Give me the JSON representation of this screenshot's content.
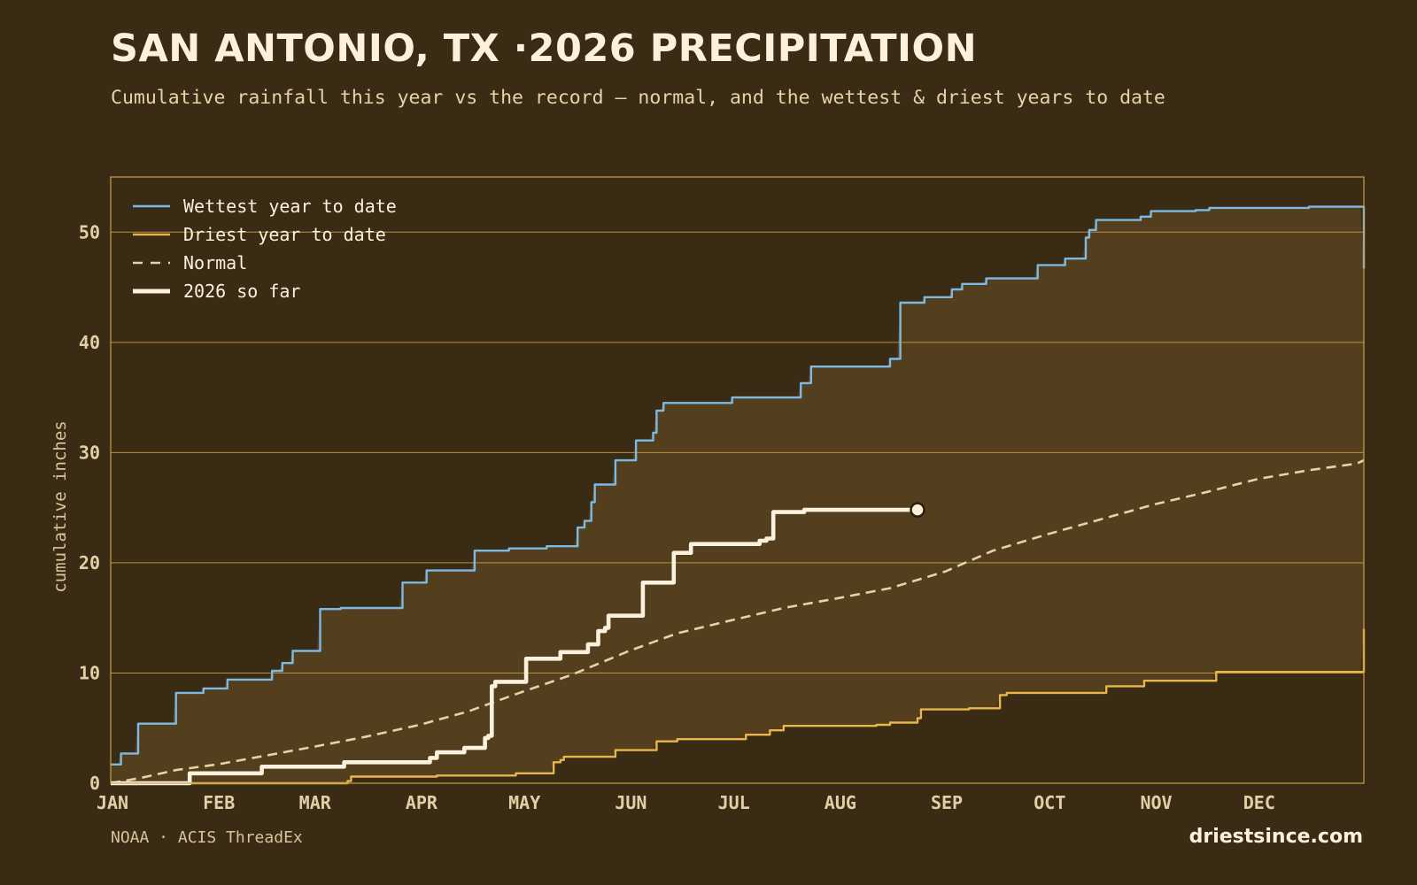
{
  "header": {
    "title": "SAN ANTONIO, TX ·2026 PRECIPITATION",
    "subtitle": "Cumulative rainfall this year vs the record — normal, and the wettest & driest years to date"
  },
  "footer": {
    "source": "NOAA · ACIS ThreadEx",
    "brand": "driestsince.com"
  },
  "colors": {
    "background": "#3a2b14",
    "band_fill": "#533f1e",
    "frame": "#c9a04a",
    "grid": "#b8913f",
    "wettest": "#7db9e2",
    "driest": "#e8b64a",
    "normal": "#e6d3a8",
    "current": "#fbf1dc"
  },
  "chart_data": {
    "type": "line",
    "ylabel": "cumulative inches",
    "ylim": [
      0,
      55
    ],
    "yticks": [
      0,
      10,
      20,
      30,
      40,
      50
    ],
    "xlim": [
      1,
      366
    ],
    "month_ticks": [
      {
        "label": "JAN",
        "day": 1
      },
      {
        "label": "FEB",
        "day": 32
      },
      {
        "label": "MAR",
        "day": 60
      },
      {
        "label": "APR",
        "day": 91
      },
      {
        "label": "MAY",
        "day": 121
      },
      {
        "label": "JUN",
        "day": 152
      },
      {
        "label": "JUL",
        "day": 182
      },
      {
        "label": "AUG",
        "day": 213
      },
      {
        "label": "SEP",
        "day": 244
      },
      {
        "label": "OCT",
        "day": 274
      },
      {
        "label": "NOV",
        "day": 305
      },
      {
        "label": "DEC",
        "day": 335
      }
    ],
    "grid": true,
    "legend_position": "top-left",
    "series": [
      {
        "name": "Wettest year to date",
        "key": "wettest",
        "step": true,
        "points": [
          [
            1,
            1.7
          ],
          [
            3,
            1.7
          ],
          [
            4,
            2.7
          ],
          [
            8,
            2.7
          ],
          [
            9,
            5.4
          ],
          [
            19,
            5.4
          ],
          [
            20,
            8.2
          ],
          [
            27,
            8.2
          ],
          [
            28,
            8.6
          ],
          [
            33,
            8.6
          ],
          [
            35,
            9.4
          ],
          [
            47,
            9.4
          ],
          [
            48,
            10.2
          ],
          [
            51,
            10.9
          ],
          [
            54,
            12.0
          ],
          [
            60,
            12.0
          ],
          [
            62,
            15.8
          ],
          [
            67,
            15.8
          ],
          [
            68,
            15.9
          ],
          [
            84,
            15.9
          ],
          [
            86,
            18.2
          ],
          [
            92,
            18.2
          ],
          [
            93,
            19.3
          ],
          [
            105,
            19.3
          ],
          [
            107,
            21.1
          ],
          [
            116,
            21.1
          ],
          [
            117,
            21.3
          ],
          [
            127,
            21.3
          ],
          [
            128,
            21.5
          ],
          [
            134,
            21.5
          ],
          [
            137,
            23.2
          ],
          [
            139,
            23.8
          ],
          [
            141,
            25.5
          ],
          [
            142,
            27.1
          ],
          [
            146,
            27.1
          ],
          [
            148,
            29.3
          ],
          [
            153,
            29.3
          ],
          [
            154,
            31.1
          ],
          [
            158,
            31.1
          ],
          [
            159,
            31.8
          ],
          [
            160,
            33.8
          ],
          [
            162,
            34.5
          ],
          [
            180,
            34.5
          ],
          [
            182,
            35.0
          ],
          [
            200,
            35.0
          ],
          [
            202,
            36.3
          ],
          [
            204,
            36.3
          ],
          [
            205,
            37.8
          ],
          [
            227,
            37.8
          ],
          [
            228,
            38.5
          ],
          [
            230,
            38.5
          ],
          [
            231,
            43.6
          ],
          [
            235,
            43.6
          ],
          [
            238,
            44.1
          ],
          [
            244,
            44.1
          ],
          [
            246,
            44.8
          ],
          [
            249,
            45.3
          ],
          [
            255,
            45.3
          ],
          [
            256,
            45.8
          ],
          [
            269,
            45.8
          ],
          [
            271,
            47.0
          ],
          [
            278,
            47.0
          ],
          [
            279,
            47.6
          ],
          [
            283,
            47.6
          ],
          [
            285,
            49.5
          ],
          [
            286,
            50.2
          ],
          [
            288,
            51.1
          ],
          [
            300,
            51.1
          ],
          [
            301,
            51.4
          ],
          [
            303,
            51.4
          ],
          [
            304,
            51.9
          ],
          [
            316,
            51.9
          ],
          [
            317,
            52.0
          ],
          [
            320,
            52.0
          ],
          [
            321,
            52.2
          ],
          [
            349,
            52.2
          ],
          [
            350,
            52.3
          ],
          [
            365,
            52.3
          ],
          [
            366,
            46.7
          ]
        ]
      },
      {
        "name": "Driest year to date",
        "key": "driest",
        "step": true,
        "points": [
          [
            1,
            0
          ],
          [
            66,
            0
          ],
          [
            70,
            0.2
          ],
          [
            71,
            0.6
          ],
          [
            95,
            0.6
          ],
          [
            96,
            0.7
          ],
          [
            117,
            0.7
          ],
          [
            119,
            0.9
          ],
          [
            128,
            0.9
          ],
          [
            130,
            1.9
          ],
          [
            132,
            2.1
          ],
          [
            133,
            2.4
          ],
          [
            147,
            2.4
          ],
          [
            148,
            3.0
          ],
          [
            159,
            3.0
          ],
          [
            160,
            3.8
          ],
          [
            165,
            3.8
          ],
          [
            166,
            4.0
          ],
          [
            184,
            4.0
          ],
          [
            186,
            4.4
          ],
          [
            191,
            4.4
          ],
          [
            193,
            4.8
          ],
          [
            196,
            4.8
          ],
          [
            197,
            5.2
          ],
          [
            218,
            5.2
          ],
          [
            224,
            5.3
          ],
          [
            228,
            5.5
          ],
          [
            234,
            5.5
          ],
          [
            236,
            5.9
          ],
          [
            237,
            6.7
          ],
          [
            250,
            6.7
          ],
          [
            251,
            6.8
          ],
          [
            258,
            6.8
          ],
          [
            260,
            8.0
          ],
          [
            262,
            8.2
          ],
          [
            290,
            8.2
          ],
          [
            291,
            8.8
          ],
          [
            300,
            8.8
          ],
          [
            302,
            9.3
          ],
          [
            322,
            9.3
          ],
          [
            323,
            10.1
          ],
          [
            365,
            10.1
          ],
          [
            366,
            14.0
          ]
        ]
      },
      {
        "name": "Normal",
        "key": "normal",
        "step": false,
        "dashed": true,
        "points": [
          [
            1,
            0
          ],
          [
            10,
            0.5
          ],
          [
            20,
            1.2
          ],
          [
            32,
            1.7
          ],
          [
            46,
            2.5
          ],
          [
            60,
            3.3
          ],
          [
            75,
            4.2
          ],
          [
            91,
            5.3
          ],
          [
            105,
            6.5
          ],
          [
            121,
            8.3
          ],
          [
            135,
            9.8
          ],
          [
            152,
            12.0
          ],
          [
            166,
            13.6
          ],
          [
            182,
            14.8
          ],
          [
            197,
            15.9
          ],
          [
            213,
            16.8
          ],
          [
            228,
            17.7
          ],
          [
            244,
            19.2
          ],
          [
            258,
            21.1
          ],
          [
            274,
            22.6
          ],
          [
            290,
            24.0
          ],
          [
            305,
            25.3
          ],
          [
            320,
            26.4
          ],
          [
            335,
            27.6
          ],
          [
            350,
            28.4
          ],
          [
            364,
            29.0
          ],
          [
            366,
            29.3
          ]
        ]
      },
      {
        "name": "2026 so far",
        "key": "current",
        "step": true,
        "points": [
          [
            1,
            0
          ],
          [
            23,
            0
          ],
          [
            24,
            0.9
          ],
          [
            44,
            0.9
          ],
          [
            45,
            1.5
          ],
          [
            67,
            1.5
          ],
          [
            69,
            1.9
          ],
          [
            92,
            1.9
          ],
          [
            94,
            2.3
          ],
          [
            96,
            2.8
          ],
          [
            103,
            2.8
          ],
          [
            104,
            3.2
          ],
          [
            109,
            3.2
          ],
          [
            110,
            4.1
          ],
          [
            111,
            4.3
          ],
          [
            112,
            8.8
          ],
          [
            113,
            9.2
          ],
          [
            121,
            9.2
          ],
          [
            122,
            11.3
          ],
          [
            130,
            11.3
          ],
          [
            132,
            11.9
          ],
          [
            139,
            11.9
          ],
          [
            140,
            12.6
          ],
          [
            143,
            13.8
          ],
          [
            145,
            14.1
          ],
          [
            146,
            15.2
          ],
          [
            155,
            15.2
          ],
          [
            156,
            18.2
          ],
          [
            164,
            18.2
          ],
          [
            165,
            20.9
          ],
          [
            169,
            20.9
          ],
          [
            170,
            21.7
          ],
          [
            189,
            21.7
          ],
          [
            190,
            22.0
          ],
          [
            192,
            22.2
          ],
          [
            194,
            24.6
          ],
          [
            202,
            24.6
          ],
          [
            203,
            24.8
          ],
          [
            236,
            24.8
          ]
        ]
      }
    ]
  }
}
